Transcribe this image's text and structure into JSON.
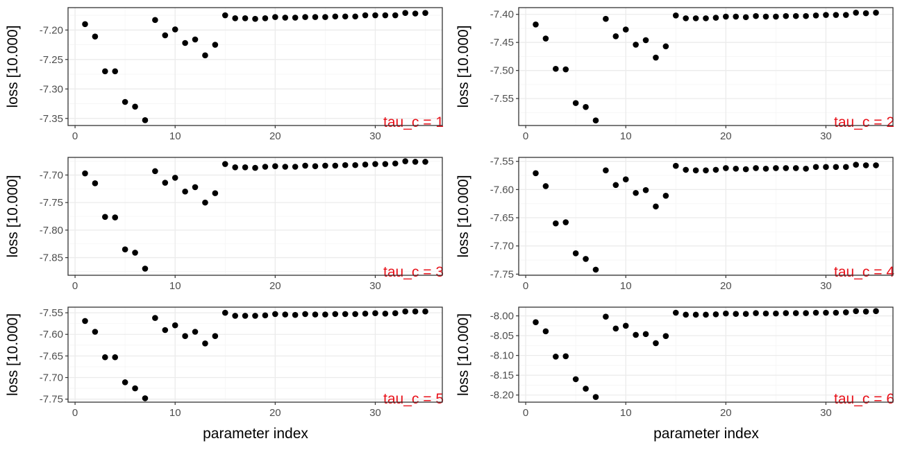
{
  "figure": {
    "xlabel": "parameter index",
    "ylabel": "loss [10.000]"
  },
  "colors": {
    "point": "#000000",
    "annotation": "#e8111a",
    "grid_major": "#ebebeb",
    "grid_minor": "#f5f5f5",
    "panel_border": "#333333",
    "tick_text": "#4d4d4d"
  },
  "chart_data": [
    {
      "type": "scatter",
      "annotation": "tau_c = 1",
      "x": [
        1,
        2,
        3,
        4,
        5,
        6,
        7,
        8,
        9,
        10,
        11,
        12,
        13,
        14,
        15,
        16,
        17,
        18,
        19,
        20,
        21,
        22,
        23,
        24,
        25,
        26,
        27,
        28,
        29,
        30,
        31,
        32,
        33,
        34,
        35
      ],
      "y": [
        -7.19,
        -7.211,
        -7.27,
        -7.27,
        -7.322,
        -7.33,
        -7.353,
        -7.183,
        -7.209,
        -7.199,
        -7.222,
        -7.216,
        -7.243,
        -7.225,
        -7.175,
        -7.18,
        -7.18,
        -7.181,
        -7.18,
        -7.178,
        -7.179,
        -7.179,
        -7.178,
        -7.178,
        -7.178,
        -7.177,
        -7.177,
        -7.177,
        -7.175,
        -7.175,
        -7.175,
        -7.175,
        -7.171,
        -7.172,
        -7.171
      ],
      "xlim": [
        -0.7,
        36.7
      ],
      "ylim": [
        -7.362,
        -7.162
      ],
      "xticks": [
        0,
        10,
        20,
        30
      ],
      "yticks": [
        -7.2,
        -7.25,
        -7.3,
        -7.35
      ],
      "ytick_labels": [
        "-7.20",
        "-7.25",
        "-7.30",
        "-7.35"
      ]
    },
    {
      "type": "scatter",
      "annotation": "tau_c = 2",
      "x": [
        1,
        2,
        3,
        4,
        5,
        6,
        7,
        8,
        9,
        10,
        11,
        12,
        13,
        14,
        15,
        16,
        17,
        18,
        19,
        20,
        21,
        22,
        23,
        24,
        25,
        26,
        27,
        28,
        29,
        30,
        31,
        32,
        33,
        34,
        35
      ],
      "y": [
        -7.418,
        -7.443,
        -7.497,
        -7.498,
        -7.558,
        -7.565,
        -7.589,
        -7.408,
        -7.439,
        -7.427,
        -7.454,
        -7.446,
        -7.477,
        -7.457,
        -7.402,
        -7.407,
        -7.407,
        -7.407,
        -7.406,
        -7.404,
        -7.404,
        -7.405,
        -7.403,
        -7.404,
        -7.404,
        -7.403,
        -7.403,
        -7.403,
        -7.402,
        -7.401,
        -7.401,
        -7.401,
        -7.397,
        -7.398,
        -7.397
      ],
      "xlim": [
        -0.7,
        36.7
      ],
      "ylim": [
        -7.598,
        -7.388
      ],
      "xticks": [
        0,
        10,
        20,
        30
      ],
      "yticks": [
        -7.4,
        -7.45,
        -7.5,
        -7.55
      ],
      "ytick_labels": [
        "-7.40",
        "-7.45",
        "-7.50",
        "-7.55"
      ]
    },
    {
      "type": "scatter",
      "annotation": "tau_c = 3",
      "x": [
        1,
        2,
        3,
        4,
        5,
        6,
        7,
        8,
        9,
        10,
        11,
        12,
        13,
        14,
        15,
        16,
        17,
        18,
        19,
        20,
        21,
        22,
        23,
        24,
        25,
        26,
        27,
        28,
        29,
        30,
        31,
        32,
        33,
        34,
        35
      ],
      "y": [
        -7.697,
        -7.715,
        -7.776,
        -7.777,
        -7.835,
        -7.841,
        -7.87,
        -7.693,
        -7.714,
        -7.705,
        -7.73,
        -7.722,
        -7.75,
        -7.733,
        -7.68,
        -7.686,
        -7.686,
        -7.687,
        -7.685,
        -7.684,
        -7.685,
        -7.685,
        -7.683,
        -7.684,
        -7.683,
        -7.683,
        -7.682,
        -7.682,
        -7.681,
        -7.68,
        -7.68,
        -7.679,
        -7.675,
        -7.676,
        -7.676
      ],
      "xlim": [
        -0.7,
        36.7
      ],
      "ylim": [
        -7.882,
        -7.668
      ],
      "xticks": [
        0,
        10,
        20,
        30
      ],
      "yticks": [
        -7.7,
        -7.75,
        -7.8,
        -7.85
      ],
      "ytick_labels": [
        "-7.70",
        "-7.75",
        "-7.80",
        "-7.85"
      ]
    },
    {
      "type": "scatter",
      "annotation": "tau_c = 4",
      "x": [
        1,
        2,
        3,
        4,
        5,
        6,
        7,
        8,
        9,
        10,
        11,
        12,
        13,
        14,
        15,
        16,
        17,
        18,
        19,
        20,
        21,
        22,
        23,
        24,
        25,
        26,
        27,
        28,
        29,
        30,
        31,
        32,
        33,
        34,
        35
      ],
      "y": [
        -7.571,
        -7.594,
        -7.66,
        -7.658,
        -7.713,
        -7.723,
        -7.742,
        -7.566,
        -7.592,
        -7.582,
        -7.606,
        -7.601,
        -7.63,
        -7.611,
        -7.558,
        -7.565,
        -7.566,
        -7.566,
        -7.565,
        -7.562,
        -7.563,
        -7.564,
        -7.562,
        -7.563,
        -7.562,
        -7.562,
        -7.562,
        -7.563,
        -7.56,
        -7.56,
        -7.56,
        -7.56,
        -7.556,
        -7.557,
        -7.557
      ],
      "xlim": [
        -0.7,
        36.7
      ],
      "ylim": [
        -7.752,
        -7.543
      ],
      "xticks": [
        0,
        10,
        20,
        30
      ],
      "yticks": [
        -7.55,
        -7.6,
        -7.65,
        -7.7,
        -7.75
      ],
      "ytick_labels": [
        "-7.55",
        "-7.60",
        "-7.65",
        "-7.70",
        "-7.75"
      ]
    },
    {
      "type": "scatter",
      "annotation": "tau_c = 5",
      "x": [
        1,
        2,
        3,
        4,
        5,
        6,
        7,
        8,
        9,
        10,
        11,
        12,
        13,
        14,
        15,
        16,
        17,
        18,
        19,
        20,
        21,
        22,
        23,
        24,
        25,
        26,
        27,
        28,
        29,
        30,
        31,
        32,
        33,
        34,
        35
      ],
      "y": [
        -7.569,
        -7.594,
        -7.653,
        -7.653,
        -7.711,
        -7.725,
        -7.748,
        -7.562,
        -7.59,
        -7.579,
        -7.604,
        -7.594,
        -7.621,
        -7.604,
        -7.55,
        -7.557,
        -7.557,
        -7.557,
        -7.556,
        -7.553,
        -7.554,
        -7.555,
        -7.553,
        -7.554,
        -7.554,
        -7.553,
        -7.553,
        -7.553,
        -7.552,
        -7.551,
        -7.552,
        -7.551,
        -7.547,
        -7.547,
        -7.547
      ],
      "xlim": [
        -0.7,
        36.7
      ],
      "ylim": [
        -7.757,
        -7.537
      ],
      "xticks": [
        0,
        10,
        20,
        30
      ],
      "yticks": [
        -7.55,
        -7.6,
        -7.65,
        -7.7,
        -7.75
      ],
      "ytick_labels": [
        "-7.55",
        "-7.60",
        "-7.65",
        "-7.70",
        "-7.75"
      ]
    },
    {
      "type": "scatter",
      "annotation": "tau_c = 6",
      "x": [
        1,
        2,
        3,
        4,
        5,
        6,
        7,
        8,
        9,
        10,
        11,
        12,
        13,
        14,
        15,
        16,
        17,
        18,
        19,
        20,
        21,
        22,
        23,
        24,
        25,
        26,
        27,
        28,
        29,
        30,
        31,
        32,
        33,
        34,
        35
      ],
      "y": [
        -8.016,
        -8.039,
        -8.103,
        -8.102,
        -8.16,
        -8.184,
        -8.205,
        -8.002,
        -8.032,
        -8.025,
        -8.048,
        -8.046,
        -8.069,
        -8.051,
        -7.992,
        -7.997,
        -7.997,
        -7.997,
        -7.996,
        -7.994,
        -7.995,
        -7.995,
        -7.993,
        -7.994,
        -7.994,
        -7.993,
        -7.993,
        -7.993,
        -7.992,
        -7.992,
        -7.992,
        -7.991,
        -7.988,
        -7.989,
        -7.988
      ],
      "xlim": [
        -0.7,
        36.7
      ],
      "ylim": [
        -8.218,
        -7.978
      ],
      "xticks": [
        0,
        10,
        20,
        30
      ],
      "yticks": [
        -8.0,
        -8.05,
        -8.1,
        -8.15,
        -8.2
      ],
      "ytick_labels": [
        "-8.00",
        "-8.05",
        "-8.10",
        "-8.15",
        "-8.20"
      ]
    }
  ]
}
